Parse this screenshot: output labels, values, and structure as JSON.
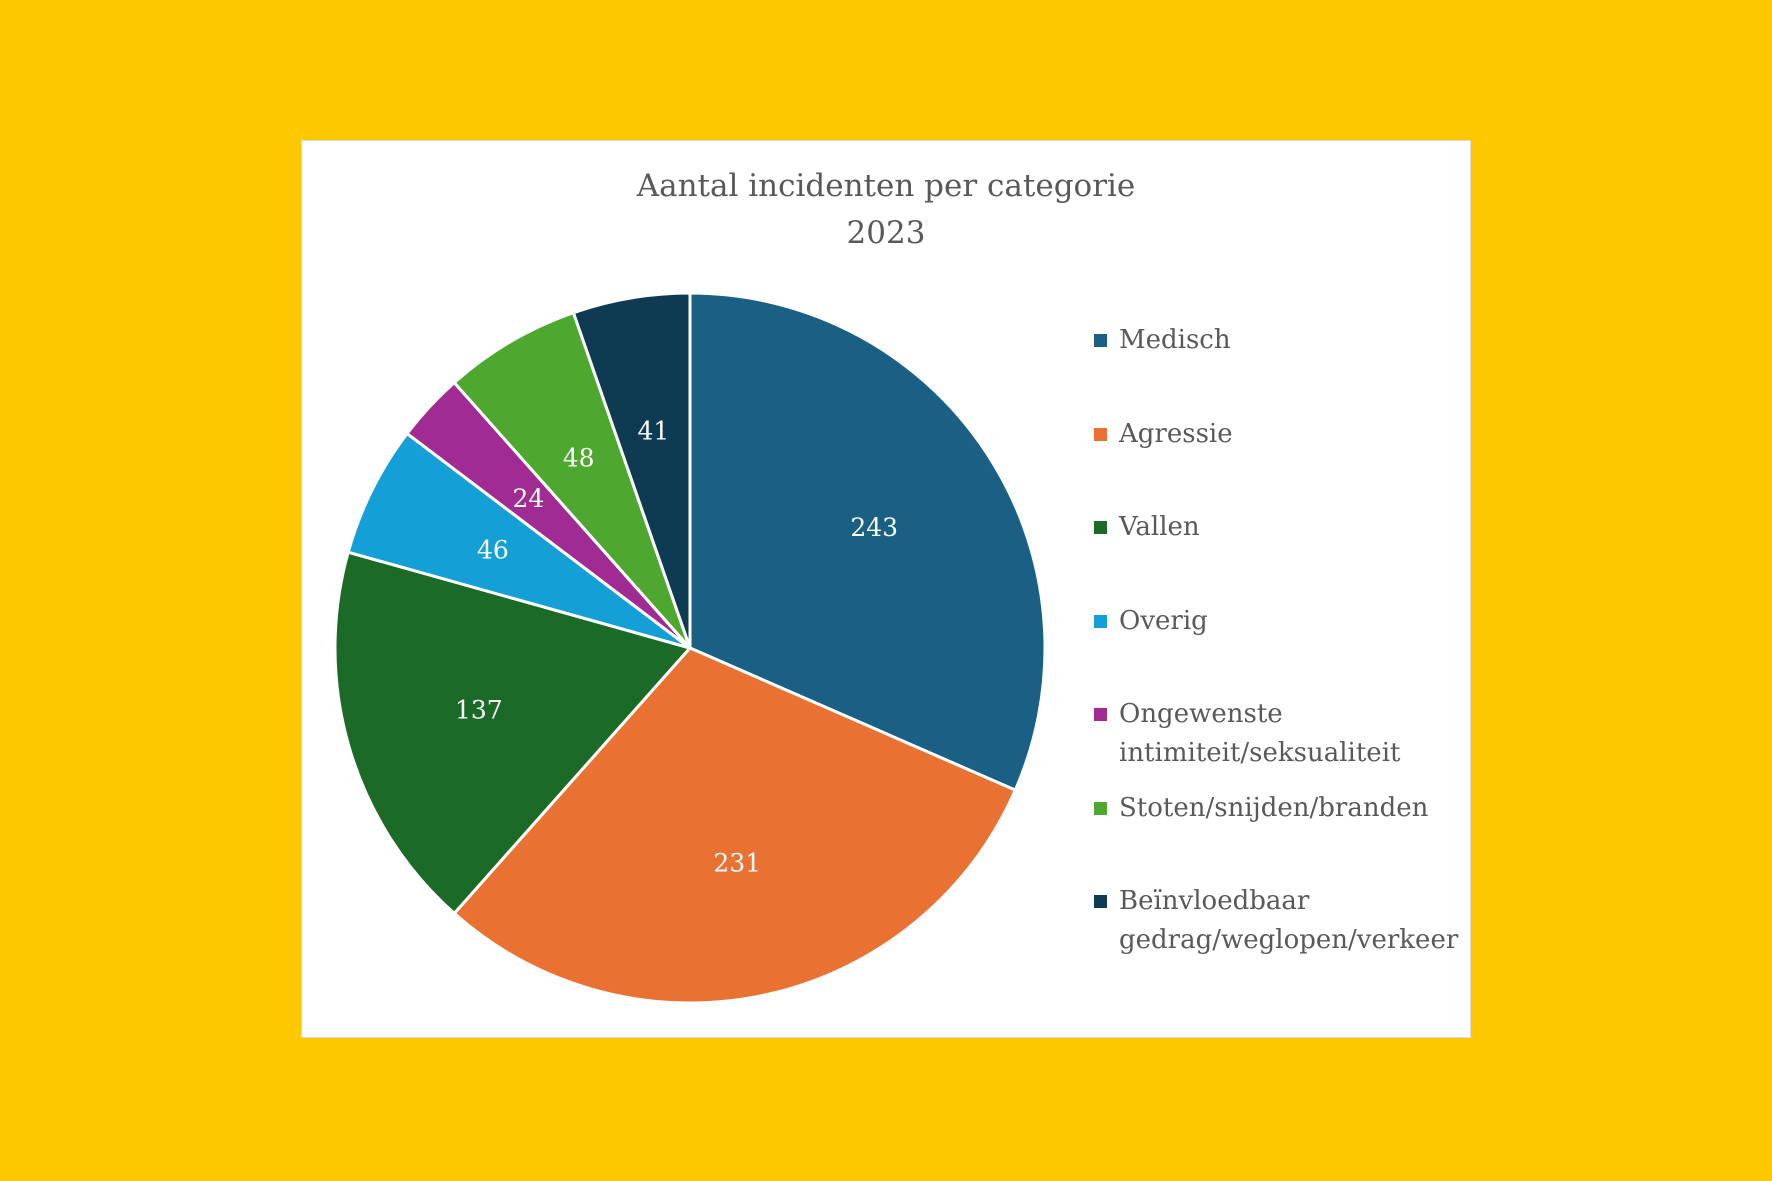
{
  "chart_data": {
    "type": "pie",
    "title": "Aantal incidenten per categorie",
    "subtitle": "2023",
    "legend_position": "right",
    "start_angle_deg": 0,
    "direction": "clockwise",
    "slices": [
      {
        "label": "Medisch",
        "value": 243,
        "color": "#1A6085"
      },
      {
        "label": "Agressie",
        "value": 231,
        "color": "#E97132"
      },
      {
        "label": "Vallen",
        "value": 137,
        "color": "#1B6A27"
      },
      {
        "label": "Overig",
        "value": 46,
        "color": "#149FD6"
      },
      {
        "label": "Ongewenste intimiteit/seksualiteit",
        "value": 24,
        "color": "#A02B93"
      },
      {
        "label": "Stoten/snijden/branden",
        "value": 48,
        "color": "#4EA72E"
      },
      {
        "label": "Beïnvloedbaar gedrag/weglopen/verkeer",
        "value": 41,
        "color": "#0E3A52"
      }
    ]
  }
}
